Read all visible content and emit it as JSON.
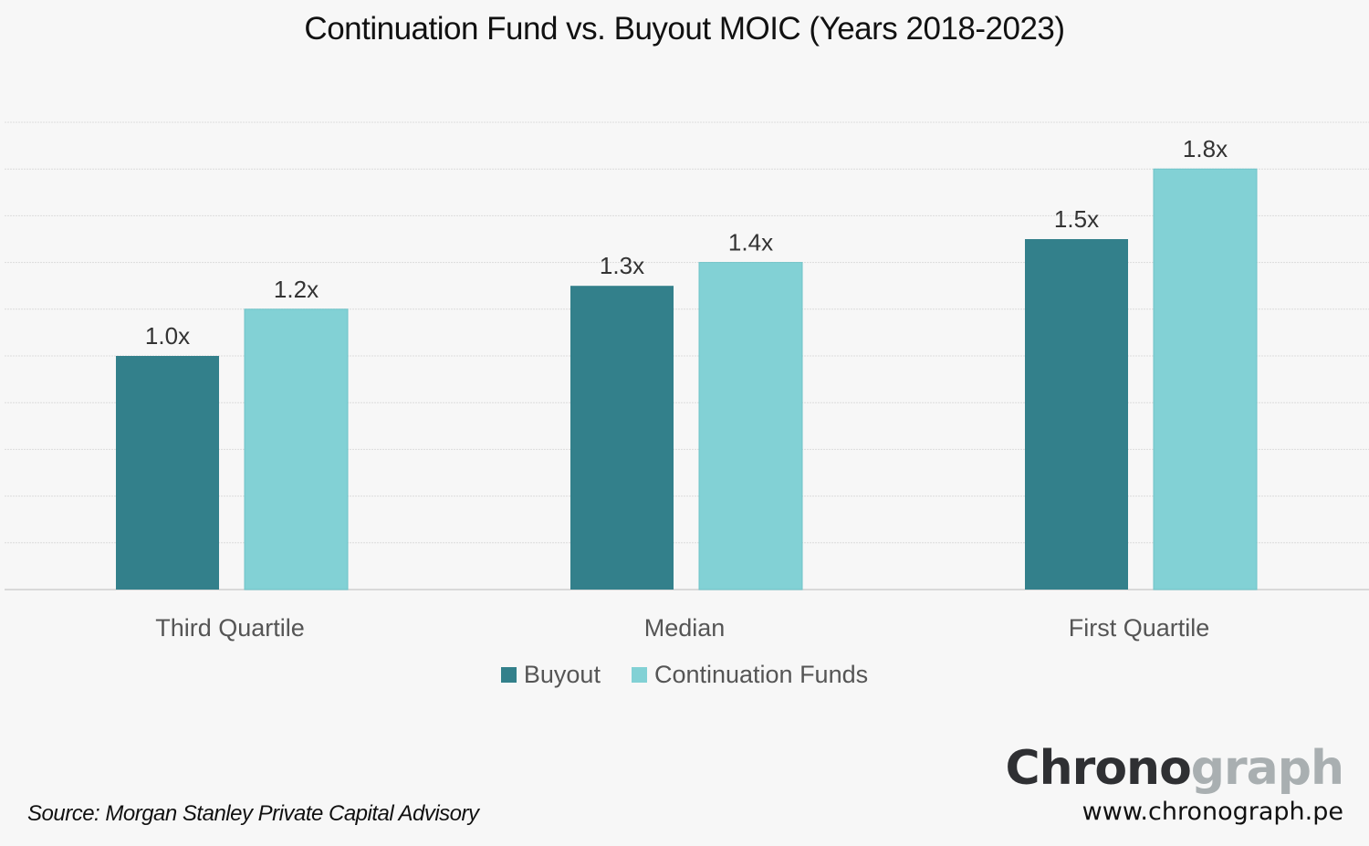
{
  "chart_data": {
    "type": "bar",
    "title": "Continuation Fund vs. Buyout MOIC (Years 2018-2023)",
    "categories": [
      "Third Quartile",
      "Median",
      "First Quartile"
    ],
    "series": [
      {
        "name": "Buyout",
        "values": [
          1.0,
          1.3,
          1.5
        ],
        "labels": [
          "1.0x",
          "1.3x",
          "1.5x"
        ],
        "color": "#33808b"
      },
      {
        "name": "Continuation Funds",
        "values": [
          1.2,
          1.4,
          1.8
        ],
        "labels": [
          "1.2x",
          "1.4x",
          "1.8x"
        ],
        "color": "#82d1d5"
      }
    ],
    "ylim": [
      0,
      2.0
    ],
    "grid": true,
    "grid_step": 0.2,
    "legend": "bottom-center",
    "xlabel": "",
    "ylabel": ""
  },
  "footer": {
    "source": "Source: Morgan Stanley Private Capital Advisory",
    "logo_part1": "Chrono",
    "logo_part2": "graph",
    "url": "www.chronograph.pe"
  }
}
